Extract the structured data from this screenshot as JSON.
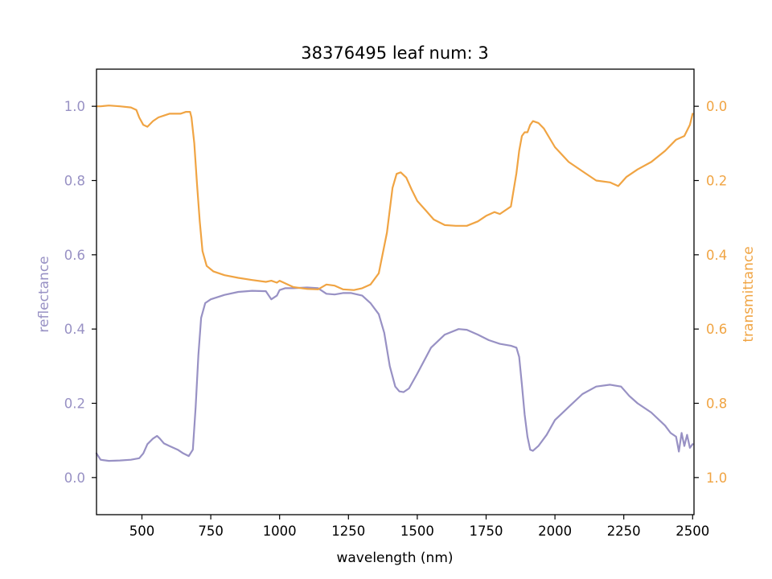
{
  "chart_data": {
    "type": "line",
    "title": "38376495 leaf num: 3",
    "xlabel": "wavelength (nm)",
    "ylabel_left": "reflectance",
    "ylabel_right": "transmittance",
    "xlim": [
      335,
      2505
    ],
    "ylim_left": [
      -0.1,
      1.1
    ],
    "ylim_right": [
      1.1,
      -0.1
    ],
    "right_axis_inverted": true,
    "x_ticks": [
      "500",
      "750",
      "1000",
      "1250",
      "1500",
      "1750",
      "2000",
      "2250",
      "2500"
    ],
    "y_ticks_left": [
      "0.0",
      "0.2",
      "0.4",
      "0.6",
      "0.8",
      "1.0"
    ],
    "y_ticks_right": [
      "0.0",
      "0.2",
      "0.4",
      "0.6",
      "0.8",
      "1.0"
    ],
    "grid": false,
    "colors": {
      "reflectance": "#9891c4",
      "transmittance": "#f0a443"
    },
    "series": [
      {
        "axis": "left",
        "color": "#9891c4",
        "x": [
          335,
          350,
          380,
          420,
          460,
          490,
          505,
          520,
          540,
          555,
          565,
          580,
          600,
          630,
          650,
          670,
          685,
          695,
          705,
          715,
          730,
          750,
          800,
          850,
          900,
          950,
          970,
          990,
          1000,
          1020,
          1050,
          1100,
          1140,
          1170,
          1200,
          1230,
          1260,
          1300,
          1330,
          1360,
          1380,
          1400,
          1420,
          1435,
          1450,
          1470,
          1500,
          1550,
          1600,
          1650,
          1680,
          1720,
          1760,
          1800,
          1840,
          1860,
          1870,
          1880,
          1890,
          1900,
          1910,
          1920,
          1940,
          1970,
          2000,
          2050,
          2100,
          2150,
          2200,
          2240,
          2270,
          2300,
          2350,
          2400,
          2420,
          2440,
          2450,
          2460,
          2470,
          2480,
          2490,
          2500
        ],
        "y": [
          0.065,
          0.048,
          0.045,
          0.046,
          0.048,
          0.052,
          0.065,
          0.09,
          0.105,
          0.112,
          0.105,
          0.092,
          0.085,
          0.075,
          0.065,
          0.058,
          0.075,
          0.19,
          0.33,
          0.43,
          0.47,
          0.48,
          0.492,
          0.5,
          0.503,
          0.502,
          0.48,
          0.49,
          0.505,
          0.51,
          0.51,
          0.512,
          0.51,
          0.495,
          0.493,
          0.497,
          0.497,
          0.49,
          0.47,
          0.44,
          0.39,
          0.3,
          0.245,
          0.232,
          0.23,
          0.24,
          0.28,
          0.35,
          0.385,
          0.4,
          0.398,
          0.385,
          0.37,
          0.36,
          0.355,
          0.35,
          0.325,
          0.25,
          0.17,
          0.11,
          0.075,
          0.072,
          0.085,
          0.115,
          0.155,
          0.19,
          0.225,
          0.245,
          0.25,
          0.245,
          0.22,
          0.2,
          0.175,
          0.14,
          0.12,
          0.11,
          0.07,
          0.12,
          0.085,
          0.115,
          0.08,
          0.09
        ]
      },
      {
        "axis": "right",
        "color": "#f0a443",
        "x": [
          335,
          350,
          380,
          420,
          460,
          480,
          490,
          505,
          520,
          540,
          560,
          580,
          600,
          620,
          640,
          660,
          675,
          680,
          690,
          700,
          710,
          720,
          735,
          760,
          800,
          850,
          900,
          950,
          970,
          990,
          1000,
          1050,
          1100,
          1140,
          1170,
          1200,
          1230,
          1270,
          1300,
          1330,
          1360,
          1390,
          1410,
          1425,
          1440,
          1460,
          1480,
          1500,
          1530,
          1560,
          1600,
          1640,
          1680,
          1720,
          1750,
          1780,
          1800,
          1840,
          1860,
          1870,
          1880,
          1890,
          1900,
          1910,
          1920,
          1940,
          1960,
          2000,
          2050,
          2100,
          2150,
          2200,
          2230,
          2260,
          2300,
          2350,
          2400,
          2440,
          2470,
          2490,
          2500
        ],
        "y": [
          0.0,
          0.0,
          -0.002,
          0.0,
          0.003,
          0.01,
          0.03,
          0.05,
          0.055,
          0.04,
          0.03,
          0.025,
          0.02,
          0.02,
          0.02,
          0.015,
          0.015,
          0.03,
          0.1,
          0.21,
          0.31,
          0.39,
          0.43,
          0.445,
          0.455,
          0.462,
          0.468,
          0.473,
          0.47,
          0.475,
          0.47,
          0.487,
          0.492,
          0.493,
          0.48,
          0.483,
          0.493,
          0.495,
          0.49,
          0.48,
          0.45,
          0.34,
          0.22,
          0.182,
          0.178,
          0.192,
          0.225,
          0.255,
          0.28,
          0.305,
          0.32,
          0.322,
          0.322,
          0.31,
          0.295,
          0.285,
          0.29,
          0.27,
          0.18,
          0.12,
          0.08,
          0.07,
          0.07,
          0.05,
          0.04,
          0.045,
          0.06,
          0.11,
          0.15,
          0.175,
          0.2,
          0.205,
          0.215,
          0.19,
          0.17,
          0.15,
          0.12,
          0.09,
          0.08,
          0.05,
          0.02
        ]
      }
    ]
  }
}
